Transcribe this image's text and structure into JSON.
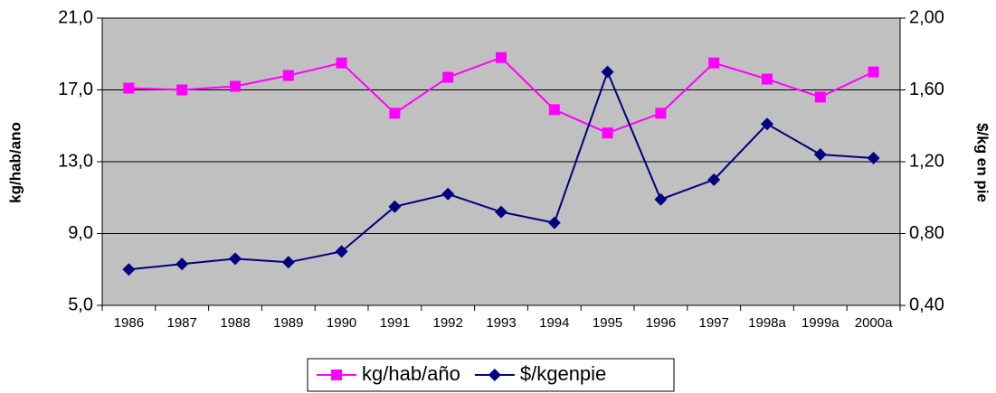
{
  "chart_data": {
    "type": "line",
    "y_label": "kg/hab/ano",
    "y2_label": "$/kg en pie",
    "categories": [
      "1986",
      "1987",
      "1988",
      "1989",
      "1990",
      "1991",
      "1992",
      "1993",
      "1994",
      "1995",
      "1996",
      "1997",
      "1998a",
      "1999a",
      "2000a"
    ],
    "series": [
      {
        "name": "kg/hab/año",
        "color": "#ff00ff",
        "marker": "square",
        "values": [
          17.1,
          17.0,
          17.2,
          17.8,
          18.5,
          15.7,
          17.7,
          18.8,
          15.9,
          14.6,
          15.7,
          18.5,
          17.6,
          16.6,
          18.0
        ]
      },
      {
        "name": "$/kgenpie",
        "color": "#000080",
        "marker": "diamond",
        "axis": "y2",
        "values": [
          0.6,
          0.63,
          0.66,
          0.64,
          0.7,
          0.95,
          1.02,
          0.92,
          0.86,
          1.7,
          0.99,
          1.1,
          1.41,
          1.24,
          1.22
        ]
      }
    ],
    "ylim": [
      5,
      21
    ],
    "yticks": [
      {
        "value": 5,
        "label": "5,0"
      },
      {
        "value": 9,
        "label": "9,0"
      },
      {
        "value": 13,
        "label": "13,0"
      },
      {
        "value": 17,
        "label": "17,0"
      },
      {
        "value": 21,
        "label": "21,0"
      }
    ],
    "y2lim": [
      0.4,
      2.0
    ],
    "y2ticks": [
      {
        "value": 0.4,
        "label": "0,40"
      },
      {
        "value": 0.8,
        "label": "0,80"
      },
      {
        "value": 1.2,
        "label": "1,20"
      },
      {
        "value": 1.6,
        "label": "1,60"
      },
      {
        "value": 2.0,
        "label": "2,00"
      }
    ],
    "grid": true,
    "legend": "bottom",
    "plot_background": "#c0c0c0"
  }
}
